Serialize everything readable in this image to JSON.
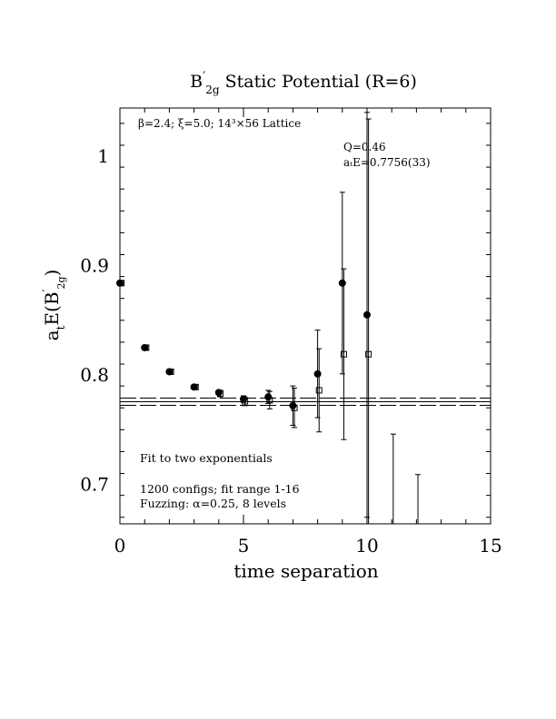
{
  "chart_data": {
    "type": "scatter",
    "title": "B'2g Static Potential (R=6)",
    "title_parts": {
      "main": "B",
      "prime": "′",
      "sub": "2g",
      "rest": " Static Potential (R=6)"
    },
    "xlabel": "time separation",
    "ylabel": "aₜE(B'2g)",
    "ylabel_parts": {
      "a": "a",
      "t": "t",
      "e": "E(B",
      "prime": "′",
      "sub": "2g",
      "close": ")"
    },
    "xlim": [
      0,
      15
    ],
    "ylim": [
      0.664,
      1.044
    ],
    "x_ticks": [
      0,
      5,
      10,
      15
    ],
    "x_tick_labels": [
      "0",
      "5",
      "10",
      "15"
    ],
    "y_ticks": [
      0.7,
      0.8,
      0.9,
      1.0
    ],
    "y_tick_labels": [
      "0.7",
      "0.8",
      "0.9",
      "1"
    ],
    "annotations": {
      "lattice": "β=2.4; ξ=5.0; 14³×56 Lattice",
      "q": "Q=0.46",
      "fit_value": "aₜE=0.7756(33)",
      "fit_type": "Fit to two exponentials",
      "configs": "1200 configs; fit range 1-16",
      "fuzzing": "Fuzzing: α=0.25, 8 levels"
    },
    "fit": {
      "value": 0.7756,
      "error": 0.0033
    },
    "series": [
      {
        "marker": "filled-circle",
        "x": [
          0,
          1,
          2,
          3,
          4,
          5,
          6,
          7,
          8,
          9,
          10
        ],
        "y": [
          0.884,
          0.825,
          0.803,
          0.789,
          0.784,
          0.778,
          0.78,
          0.772,
          0.801,
          0.884,
          0.855
        ],
        "err": [
          0.002,
          0.002,
          0.002,
          0.002,
          0.002,
          0.003,
          0.006,
          0.018,
          0.04,
          0.083,
          0.185
        ]
      },
      {
        "marker": "open-square",
        "x": [
          0.06,
          1.06,
          2.06,
          3.06,
          4.06,
          5.06,
          6.06,
          7.06,
          8.06,
          9.06,
          10.06,
          11.06,
          12.06
        ],
        "y": [
          0.884,
          0.825,
          0.803,
          0.789,
          0.783,
          0.776,
          0.777,
          0.77,
          0.786,
          0.819,
          0.819,
          null,
          null
        ],
        "err": [
          0.002,
          0.002,
          0.002,
          0.002,
          0.003,
          0.004,
          0.008,
          0.018,
          0.038,
          0.078,
          0.215,
          null,
          null
        ],
        "lower_visible_error_top": [
          null,
          null,
          null,
          null,
          null,
          null,
          null,
          null,
          null,
          null,
          null,
          0.746,
          0.709
        ]
      }
    ]
  }
}
